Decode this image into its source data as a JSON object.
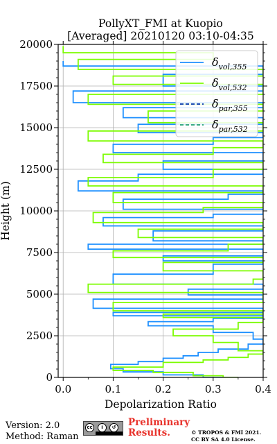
{
  "chart_data": {
    "type": "line",
    "title_line1": "PollyXT_FMI at Kuopio",
    "title_line2": "[Averaged] 20210120 03:10-04:35",
    "xlabel": "Depolarization Ratio",
    "ylabel": "Height (m)",
    "xlim": [
      -0.01,
      0.4
    ],
    "ylim": [
      0,
      20000
    ],
    "xticks": [
      "0.0",
      "0.1",
      "0.2",
      "0.3",
      "0.4"
    ],
    "xtick_values": [
      0,
      0.1,
      0.2,
      0.3,
      0.4
    ],
    "yticks": [
      "0",
      "2500",
      "5000",
      "7500",
      "10000",
      "12500",
      "15000",
      "17500",
      "20000"
    ],
    "ytick_values": [
      0,
      2500,
      5000,
      7500,
      10000,
      12500,
      15000,
      17500,
      20000
    ],
    "grid": true,
    "legend_position": "top-right",
    "series": [
      {
        "name": "vol,355",
        "color": "#1e90ff",
        "dash": "solid",
        "points": [
          [
            0.32,
            0
          ],
          [
            0.28,
            150
          ],
          [
            0.2,
            330
          ],
          [
            0.12,
            520
          ],
          [
            0.095,
            780
          ],
          [
            0.15,
            950
          ],
          [
            0.2,
            1150
          ],
          [
            0.24,
            1300
          ],
          [
            0.27,
            1500
          ],
          [
            0.31,
            1700
          ],
          [
            0.37,
            2000
          ],
          [
            0.4,
            2300
          ],
          [
            0.38,
            2700
          ],
          [
            0.3,
            3100
          ],
          [
            0.17,
            3350
          ],
          [
            0.3,
            3550
          ],
          [
            0.4,
            3700
          ],
          [
            0.1,
            3900
          ],
          [
            0.4,
            4150
          ],
          [
            0.06,
            4700
          ],
          [
            0.4,
            4950
          ],
          [
            0.25,
            5300
          ],
          [
            0.4,
            5600
          ],
          [
            0.1,
            6200
          ],
          [
            0.3,
            6800
          ],
          [
            0.4,
            7000
          ],
          [
            0.2,
            7300
          ],
          [
            0.4,
            7700
          ],
          [
            0.05,
            8000
          ],
          [
            0.4,
            8200
          ],
          [
            0.18,
            8800
          ],
          [
            0.4,
            9100
          ],
          [
            0.08,
            9600
          ],
          [
            0.3,
            9800
          ],
          [
            0.4,
            10100
          ],
          [
            0.12,
            10700
          ],
          [
            0.33,
            11000
          ],
          [
            0.4,
            11200
          ],
          [
            0.03,
            11800
          ],
          [
            0.15,
            12200
          ],
          [
            0.4,
            12500
          ],
          [
            0.2,
            13000
          ],
          [
            0.4,
            13500
          ],
          [
            0.1,
            14000
          ],
          [
            0.3,
            14400
          ],
          [
            0.4,
            14700
          ],
          [
            0.15,
            15200
          ],
          [
            0.4,
            15600
          ],
          [
            0.12,
            16200
          ],
          [
            0.4,
            16500
          ],
          [
            0.02,
            17200
          ],
          [
            0.4,
            17500
          ],
          [
            0.2,
            18200
          ],
          [
            0.4,
            18700
          ],
          [
            0.0,
            19000
          ]
        ]
      },
      {
        "name": "vol,532",
        "color": "#7cfc00",
        "dash": "solid",
        "points": [
          [
            0.35,
            0
          ],
          [
            0.32,
            100
          ],
          [
            0.26,
            300
          ],
          [
            0.18,
            420
          ],
          [
            0.1,
            620
          ],
          [
            0.2,
            900
          ],
          [
            0.28,
            1050
          ],
          [
            0.33,
            1200
          ],
          [
            0.37,
            1400
          ],
          [
            0.4,
            1600
          ],
          [
            0.35,
            2100
          ],
          [
            0.3,
            2500
          ],
          [
            0.22,
            2900
          ],
          [
            0.35,
            3300
          ],
          [
            0.4,
            3600
          ],
          [
            0.2,
            3800
          ],
          [
            0.4,
            4000
          ],
          [
            0.1,
            4500
          ],
          [
            0.4,
            5100
          ],
          [
            0.05,
            5600
          ],
          [
            0.38,
            5900
          ],
          [
            0.4,
            6400
          ],
          [
            0.2,
            6900
          ],
          [
            0.4,
            7200
          ],
          [
            0.1,
            7600
          ],
          [
            0.33,
            8000
          ],
          [
            0.4,
            8400
          ],
          [
            0.15,
            8900
          ],
          [
            0.4,
            9300
          ],
          [
            0.06,
            9900
          ],
          [
            0.28,
            10200
          ],
          [
            0.4,
            10500
          ],
          [
            0.1,
            11100
          ],
          [
            0.4,
            11500
          ],
          [
            0.05,
            12000
          ],
          [
            0.3,
            12500
          ],
          [
            0.4,
            12900
          ],
          [
            0.08,
            13400
          ],
          [
            0.3,
            13800
          ],
          [
            0.4,
            14200
          ],
          [
            0.05,
            14800
          ],
          [
            0.4,
            15300
          ],
          [
            0.17,
            16000
          ],
          [
            0.4,
            16400
          ],
          [
            0.05,
            17000
          ],
          [
            0.4,
            17600
          ],
          [
            0.1,
            18100
          ],
          [
            0.4,
            18500
          ],
          [
            0.03,
            19100
          ],
          [
            0.3,
            19500
          ],
          [
            0.0,
            19900
          ]
        ]
      },
      {
        "name": "par,355",
        "color": "#0033aa",
        "dash": "dashed",
        "points": []
      },
      {
        "name": "par,532",
        "color": "#20a070",
        "dash": "dashed",
        "points": []
      }
    ]
  },
  "footer": {
    "version_text": "Version: 2.0",
    "method_text": "Method: Raman",
    "cc_text": "cc",
    "preliminary_line1": "Preliminary",
    "preliminary_line2": "Results.",
    "credit_line1": "© TROPOS & FMI 2021.",
    "credit_line2": "CC BY SA 4.0 License."
  }
}
